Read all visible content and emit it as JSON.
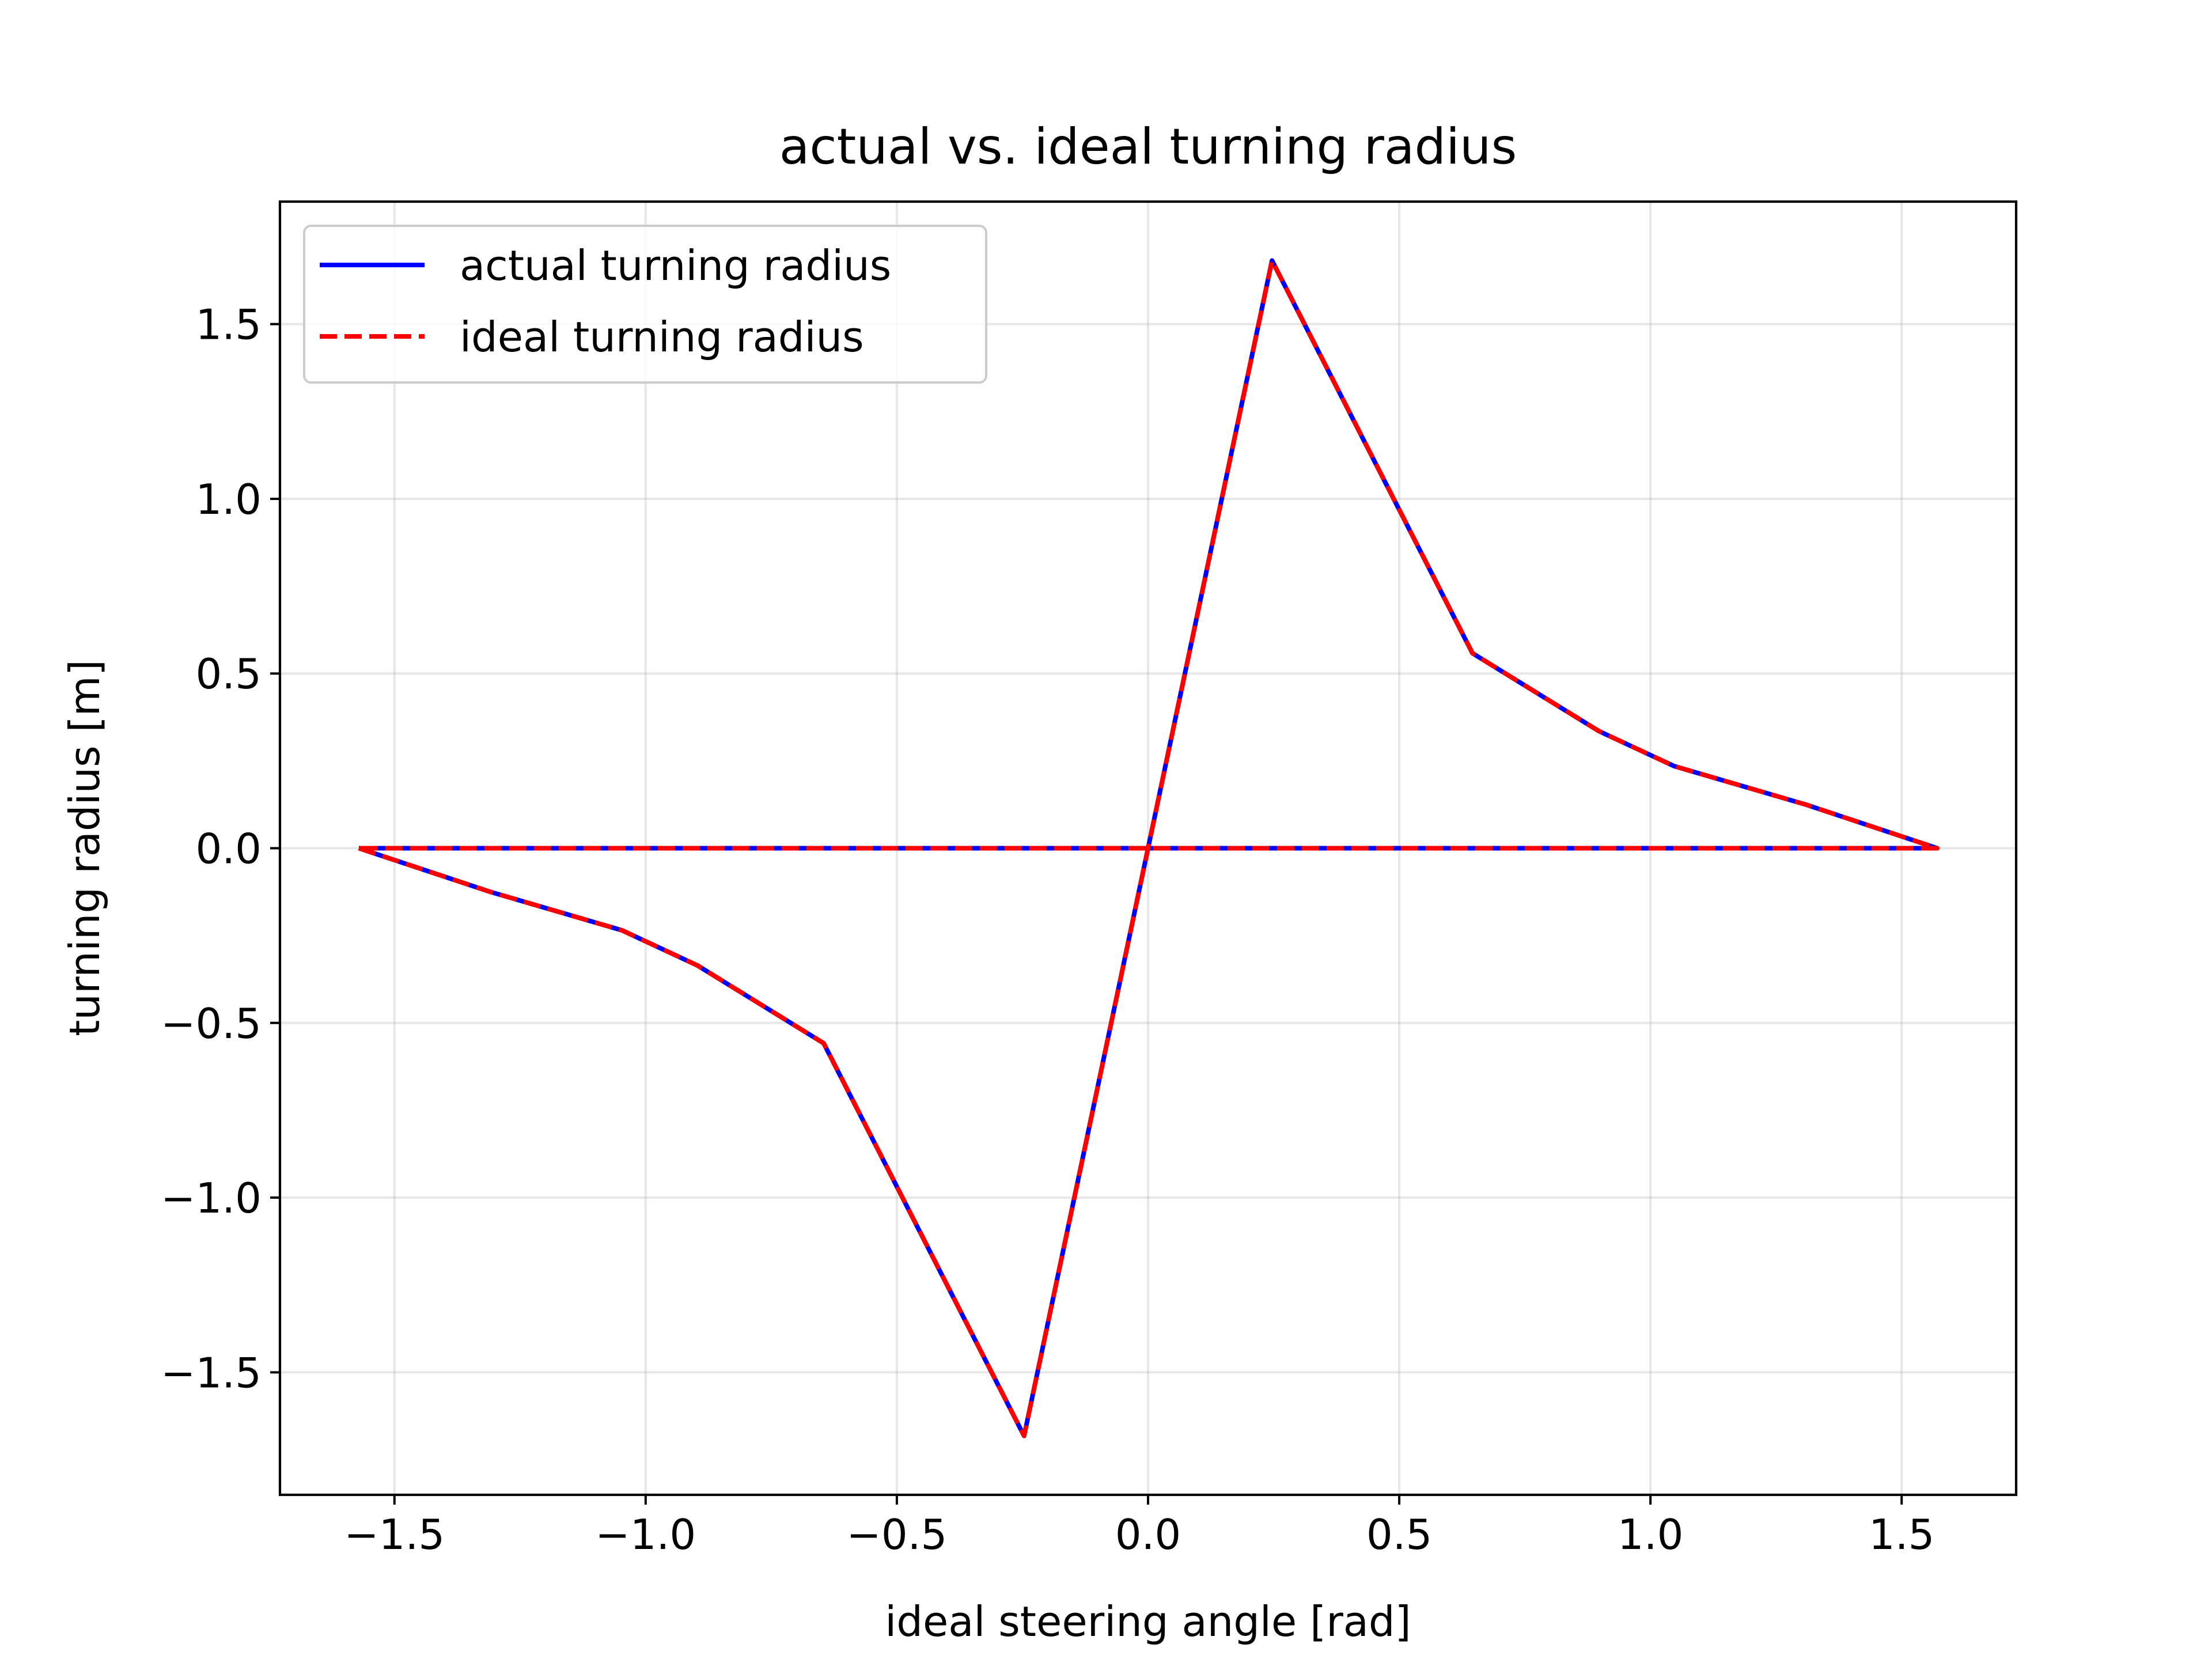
{
  "chart_data": {
    "type": "line",
    "title": "actual vs. ideal turning radius",
    "xlabel": "ideal steering angle [rad]",
    "ylabel": "turning radius [m]",
    "xlim": [
      -1.7279,
      1.7279
    ],
    "ylim": [
      -1.8506,
      1.8506
    ],
    "xticks": [
      -1.5,
      -1.0,
      -0.5,
      0.0,
      0.5,
      1.0,
      1.5
    ],
    "xtick_labels": [
      "−1.5",
      "−1.0",
      "−0.5",
      "0.0",
      "0.5",
      "1.0",
      "1.5"
    ],
    "yticks": [
      -1.5,
      -1.0,
      -0.5,
      0.0,
      0.5,
      1.0,
      1.5
    ],
    "ytick_labels": [
      "−1.5",
      "−1.0",
      "−0.5",
      "0.0",
      "0.5",
      "1.0",
      "1.5"
    ],
    "grid": true,
    "legend_position": "upper-left",
    "series": [
      {
        "name": "actual turning radius",
        "color": "#0000ff",
        "style": "solid",
        "x": [
          -1.5708,
          -1.309,
          -1.0472,
          -0.8976,
          -0.6458,
          -0.2468,
          0.0,
          0.2468,
          0.6458,
          0.8976,
          1.0472,
          1.309,
          1.5708,
          1.309,
          1.0472,
          0.7854,
          0.5236,
          0.2618,
          0.0,
          -0.2618,
          -0.5236,
          -0.7854,
          -1.0472,
          -1.309,
          -1.5708
        ],
        "y": [
          0.0,
          -0.125,
          -0.235,
          -0.335,
          -0.558,
          -1.682,
          0.0,
          1.682,
          0.558,
          0.335,
          0.235,
          0.125,
          0.0,
          0.0,
          0.0,
          0.0,
          0.0,
          0.0,
          0.0,
          0.0,
          0.0,
          0.0,
          0.0,
          0.0,
          0.0
        ]
      },
      {
        "name": "ideal turning radius",
        "color": "#ff0000",
        "style": "dashed",
        "x": [
          -1.5708,
          -1.309,
          -1.0472,
          -0.8976,
          -0.6458,
          -0.2468,
          0.0,
          0.2468,
          0.6458,
          0.8976,
          1.0472,
          1.309,
          1.5708,
          1.309,
          1.0472,
          0.7854,
          0.5236,
          0.2618,
          0.0,
          -0.2618,
          -0.5236,
          -0.7854,
          -1.0472,
          -1.309,
          -1.5708
        ],
        "y": [
          0.0,
          -0.125,
          -0.235,
          -0.335,
          -0.558,
          -1.682,
          0.0,
          1.682,
          0.558,
          0.335,
          0.235,
          0.125,
          0.0,
          0.0,
          0.0,
          0.0,
          0.0,
          0.0,
          0.0,
          0.0,
          0.0,
          0.0,
          0.0,
          0.0,
          0.0
        ]
      }
    ]
  }
}
